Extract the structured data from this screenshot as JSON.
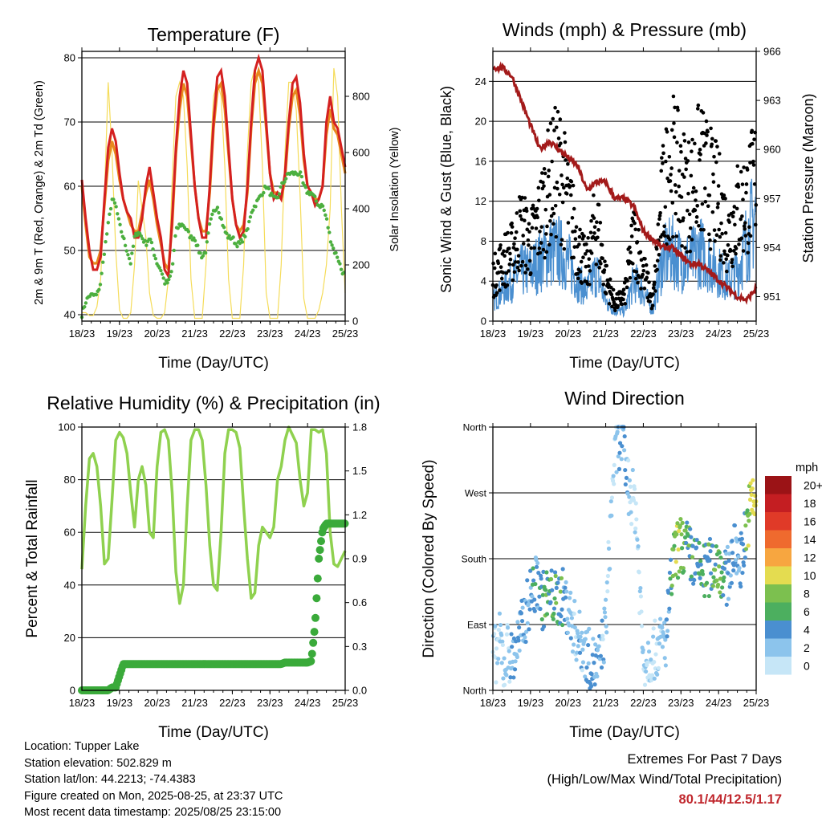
{
  "colors": {
    "t2m": "#e8891f",
    "t9m": "#d42020",
    "td": "#4caf3f",
    "solar": "#f5dc5a",
    "gust": "#000000",
    "wind": "#4a8fd0",
    "pressure": "#a31a1a",
    "rh": "#8fd14f",
    "precip": "#3aaa3a",
    "extreme": "#c0272d"
  },
  "time_ticks": [
    "18/23",
    "19/23",
    "20/23",
    "21/23",
    "22/23",
    "23/23",
    "24/23",
    "25/23"
  ],
  "chart_data": [
    {
      "id": "temperature",
      "type": "line",
      "title": "Temperature (F)",
      "xlabel": "Time (Day/UTC)",
      "ylabel": "2m & 9m T (Red, Orange) & 2m Td (Green)",
      "y2label": "Solar Insolation (Yellow)",
      "ylim": [
        39,
        81
      ],
      "y2lim": [
        0,
        960
      ],
      "yticks": [
        40,
        50,
        60,
        70,
        80
      ],
      "y2ticks": [
        0,
        200,
        400,
        600,
        800
      ],
      "x": [
        0,
        0.1,
        0.2,
        0.3,
        0.4,
        0.5,
        0.6,
        0.7,
        0.8,
        0.9,
        1.0,
        1.1,
        1.2,
        1.3,
        1.4,
        1.5,
        1.6,
        1.7,
        1.8,
        1.9,
        2.0,
        2.1,
        2.2,
        2.3,
        2.4,
        2.5,
        2.6,
        2.7,
        2.8,
        2.9,
        3.0,
        3.1,
        3.2,
        3.3,
        3.4,
        3.5,
        3.6,
        3.7,
        3.8,
        3.9,
        4.0,
        4.1,
        4.2,
        4.3,
        4.4,
        4.5,
        4.6,
        4.7,
        4.8,
        4.9,
        5.0,
        5.1,
        5.2,
        5.3,
        5.4,
        5.5,
        5.6,
        5.7,
        5.8,
        5.9,
        6.0,
        6.1,
        6.2,
        6.3,
        6.4,
        6.5,
        6.6,
        6.7,
        6.8,
        6.9,
        7.0
      ],
      "series": [
        {
          "key": "t9m",
          "values": [
            61,
            55,
            50,
            47,
            47,
            49,
            58,
            66,
            69,
            67,
            62,
            58,
            56,
            55,
            52,
            52,
            55,
            60,
            63,
            59,
            55,
            52,
            47,
            46,
            55,
            66,
            74,
            78,
            76,
            68,
            60,
            55,
            52,
            52,
            60,
            70,
            77,
            78,
            74,
            66,
            58,
            54,
            52,
            53,
            60,
            70,
            78,
            80,
            78,
            70,
            62,
            58,
            59,
            58,
            62,
            70,
            76,
            77,
            73,
            65,
            60,
            59,
            57,
            58,
            60,
            70,
            74,
            70,
            69,
            66,
            63
          ]
        },
        {
          "key": "t2m",
          "values": [
            60,
            54,
            49,
            48,
            48,
            50,
            57,
            64,
            67,
            65,
            61,
            58,
            56,
            54,
            53,
            53,
            56,
            59,
            61,
            58,
            54,
            51,
            48,
            47,
            54,
            65,
            72,
            76,
            74,
            67,
            60,
            55,
            53,
            53,
            59,
            69,
            75,
            76,
            72,
            65,
            58,
            54,
            53,
            54,
            59,
            69,
            76,
            78,
            76,
            69,
            62,
            59,
            59,
            58,
            61,
            69,
            74,
            75,
            71,
            64,
            60,
            59,
            58,
            58,
            60,
            68,
            72,
            69,
            68,
            65,
            62
          ]
        },
        {
          "key": "td",
          "values": [
            40,
            42,
            43,
            43,
            43,
            45,
            50,
            54,
            58,
            57,
            54,
            52,
            50,
            48,
            52,
            53,
            52,
            51,
            52,
            50,
            48,
            47,
            45,
            45,
            47,
            53,
            54,
            54,
            53,
            52,
            52,
            50,
            49,
            50,
            54,
            56,
            57,
            55,
            53,
            52,
            52,
            51,
            51,
            52,
            53,
            56,
            57,
            58,
            59,
            60,
            59,
            58,
            58,
            60,
            61,
            62,
            62,
            62,
            62,
            60,
            59,
            59,
            58,
            57,
            57,
            55,
            52,
            50,
            49,
            47,
            46
          ]
        },
        {
          "key": "solar",
          "axis": "y2",
          "values": [
            30,
            30,
            20,
            20,
            50,
            150,
            450,
            850,
            600,
            250,
            40,
            10,
            10,
            30,
            200,
            500,
            400,
            300,
            100,
            20,
            10,
            10,
            30,
            150,
            500,
            800,
            850,
            800,
            550,
            150,
            10,
            10,
            10,
            200,
            550,
            800,
            850,
            800,
            550,
            150,
            10,
            10,
            10,
            200,
            600,
            850,
            900,
            850,
            550,
            100,
            10,
            10,
            10,
            200,
            600,
            850,
            850,
            750,
            450,
            80,
            10,
            10,
            10,
            40,
            100,
            200,
            400,
            900,
            800,
            400,
            100
          ]
        }
      ]
    },
    {
      "id": "winds",
      "type": "scatter",
      "title": "Winds (mph) & Pressure (mb)",
      "xlabel": "Time (Day/UTC)",
      "ylabel": "Sonic Wind & Gust (Blue, Black)",
      "y2label": "Station Pressure (Maroon)",
      "ylim": [
        0,
        27
      ],
      "y2lim": [
        949.5,
        966
      ],
      "yticks": [
        0,
        4,
        8,
        12,
        16,
        20,
        24
      ],
      "y2ticks": [
        951,
        954,
        957,
        960,
        963,
        966
      ],
      "x": [
        0,
        0.25,
        0.5,
        0.75,
        1.0,
        1.25,
        1.5,
        1.75,
        2.0,
        2.25,
        2.5,
        2.75,
        3.0,
        3.25,
        3.5,
        3.75,
        4.0,
        4.25,
        4.5,
        4.75,
        5.0,
        5.25,
        5.5,
        5.75,
        6.0,
        6.25,
        6.5,
        6.75,
        7.0
      ],
      "series": [
        {
          "key": "gust",
          "values": [
            5,
            7,
            8,
            11,
            9,
            12,
            16,
            18,
            14,
            9,
            6,
            12,
            5,
            2,
            3,
            10,
            6,
            2,
            14,
            19,
            16,
            15,
            18,
            16,
            14,
            10,
            13,
            14,
            17
          ]
        },
        {
          "key": "wind",
          "values": [
            2,
            3,
            4,
            5,
            5,
            6,
            7,
            7,
            6,
            4,
            3,
            5,
            2,
            1,
            1,
            4,
            3,
            1,
            6,
            7,
            6,
            6,
            7,
            6,
            5,
            4,
            5,
            8,
            11
          ]
        },
        {
          "key": "pressure",
          "axis": "y2",
          "values": [
            965,
            965,
            964.5,
            963,
            961.5,
            960,
            960.5,
            960,
            959.5,
            959,
            957.5,
            958,
            958,
            957,
            957,
            956.5,
            955,
            954.5,
            954,
            954,
            953.5,
            953,
            953,
            952.5,
            952,
            951.5,
            951,
            950.8,
            951.5
          ]
        }
      ]
    },
    {
      "id": "humidity",
      "type": "line",
      "title": "Relative Humidity (%) & Precipitation (in)",
      "xlabel": "Time (Day/UTC)",
      "ylabel": "Percent & Total Rainfall",
      "ylim": [
        0,
        100
      ],
      "y2lim": [
        0,
        1.8
      ],
      "yticks": [
        0,
        20,
        40,
        60,
        80,
        100
      ],
      "y2ticks": [
        "0.0",
        "0.3",
        "0.6",
        "0.9",
        "1.2",
        "1.5",
        "1.8"
      ],
      "x": [
        0,
        0.1,
        0.2,
        0.3,
        0.4,
        0.5,
        0.6,
        0.7,
        0.8,
        0.9,
        1.0,
        1.1,
        1.2,
        1.3,
        1.4,
        1.5,
        1.6,
        1.7,
        1.8,
        1.9,
        2.0,
        2.1,
        2.2,
        2.3,
        2.4,
        2.5,
        2.6,
        2.7,
        2.8,
        2.9,
        3.0,
        3.1,
        3.2,
        3.3,
        3.4,
        3.5,
        3.6,
        3.7,
        3.8,
        3.9,
        4.0,
        4.1,
        4.2,
        4.3,
        4.4,
        4.5,
        4.6,
        4.7,
        4.8,
        4.9,
        5.0,
        5.1,
        5.2,
        5.3,
        5.4,
        5.5,
        5.6,
        5.7,
        5.8,
        5.9,
        6.0,
        6.1,
        6.2,
        6.3,
        6.4,
        6.5,
        6.6,
        6.7,
        6.8,
        6.9,
        7.0
      ],
      "series": [
        {
          "key": "rh",
          "values": [
            46,
            70,
            88,
            90,
            85,
            70,
            48,
            50,
            72,
            95,
            98,
            96,
            90,
            75,
            62,
            80,
            85,
            78,
            60,
            58,
            85,
            98,
            99,
            95,
            75,
            45,
            33,
            40,
            70,
            95,
            99,
            99,
            95,
            78,
            55,
            40,
            38,
            60,
            90,
            99,
            99,
            98,
            92,
            70,
            50,
            35,
            37,
            55,
            62,
            60,
            58,
            62,
            80,
            85,
            95,
            100,
            97,
            94,
            80,
            70,
            75,
            99,
            99,
            98,
            99,
            90,
            60,
            48,
            47,
            50,
            53
          ]
        },
        {
          "key": "precip",
          "axis": "y2",
          "values": [
            0,
            0,
            0,
            0,
            0,
            0,
            0,
            0,
            0.02,
            0.02,
            0.1,
            0.18,
            0.18,
            0.18,
            0.18,
            0.18,
            0.18,
            0.18,
            0.18,
            0.18,
            0.18,
            0.18,
            0.18,
            0.18,
            0.18,
            0.18,
            0.18,
            0.18,
            0.18,
            0.18,
            0.18,
            0.18,
            0.18,
            0.18,
            0.18,
            0.18,
            0.18,
            0.18,
            0.18,
            0.18,
            0.18,
            0.18,
            0.18,
            0.18,
            0.18,
            0.18,
            0.18,
            0.18,
            0.18,
            0.18,
            0.18,
            0.18,
            0.18,
            0.18,
            0.19,
            0.19,
            0.19,
            0.19,
            0.19,
            0.19,
            0.19,
            0.2,
            0.45,
            0.9,
            1.1,
            1.14,
            1.14,
            1.14,
            1.14,
            1.14,
            1.14
          ]
        }
      ]
    },
    {
      "id": "direction",
      "type": "scatter",
      "title": "Wind Direction",
      "xlabel": "Time (Day/UTC)",
      "ylabel": "Direction (Colored By Speed)",
      "ylim": [
        0,
        360
      ],
      "yticks": [
        "North",
        "East",
        "South",
        "West",
        "North"
      ],
      "legend_title": "mph",
      "legend_labels": [
        "0",
        "2",
        "4",
        "6",
        "8",
        "10",
        "12",
        "14",
        "16",
        "18",
        "20+"
      ],
      "legend_colors": [
        "#c6e6f7",
        "#8cc4ec",
        "#4a8fd0",
        "#4caf5f",
        "#7cc04f",
        "#e4dc50",
        "#f7a640",
        "#ef6a2e",
        "#e03a28",
        "#c41e22",
        "#9b1316"
      ],
      "x": [
        0.1,
        0.2,
        0.3,
        0.4,
        0.5,
        0.7,
        0.8,
        0.9,
        1.0,
        1.1,
        1.2,
        1.3,
        1.4,
        1.5,
        1.6,
        1.7,
        1.8,
        1.9,
        2.0,
        2.2,
        2.4,
        2.6,
        2.8,
        3.0,
        3.2,
        3.3,
        3.4,
        3.5,
        3.6,
        3.8,
        4.0,
        4.2,
        4.4,
        4.6,
        4.8,
        5.0,
        5.2,
        5.4,
        5.6,
        5.8,
        6.0,
        6.2,
        6.4,
        6.6,
        6.8,
        6.9
      ],
      "values": [
        50,
        70,
        30,
        60,
        40,
        70,
        90,
        110,
        130,
        140,
        150,
        120,
        130,
        125,
        130,
        120,
        130,
        125,
        110,
        80,
        60,
        40,
        30,
        90,
        300,
        330,
        350,
        320,
        280,
        250,
        40,
        50,
        60,
        70,
        180,
        200,
        190,
        170,
        160,
        170,
        175,
        150,
        190,
        180,
        240,
        260
      ],
      "speeds": [
        1,
        2,
        1,
        2,
        3,
        3,
        4,
        4,
        4,
        5,
        4,
        5,
        6,
        5,
        6,
        5,
        6,
        4,
        3,
        2,
        3,
        4,
        3,
        2,
        1,
        2,
        3,
        4,
        2,
        1,
        2,
        1,
        2,
        3,
        7,
        8,
        6,
        5,
        6,
        5,
        7,
        4,
        3,
        4,
        8,
        10
      ]
    }
  ],
  "info": {
    "location": "Location: Tupper Lake",
    "elevation": "Station elevation: 502.829 m",
    "latlon": "Station lat/lon: 44.2213; -74.4383",
    "created": "Figure created on Mon, 2025-08-25, at 23:37 UTC",
    "recent": "Most recent data timestamp: 2025/08/25 23:15:00"
  },
  "extremes": {
    "line1": "Extremes For Past 7 Days",
    "line2": "(High/Low/Max Wind/Total Precipitation)",
    "values": "80.1/44/12.5/1.17"
  }
}
